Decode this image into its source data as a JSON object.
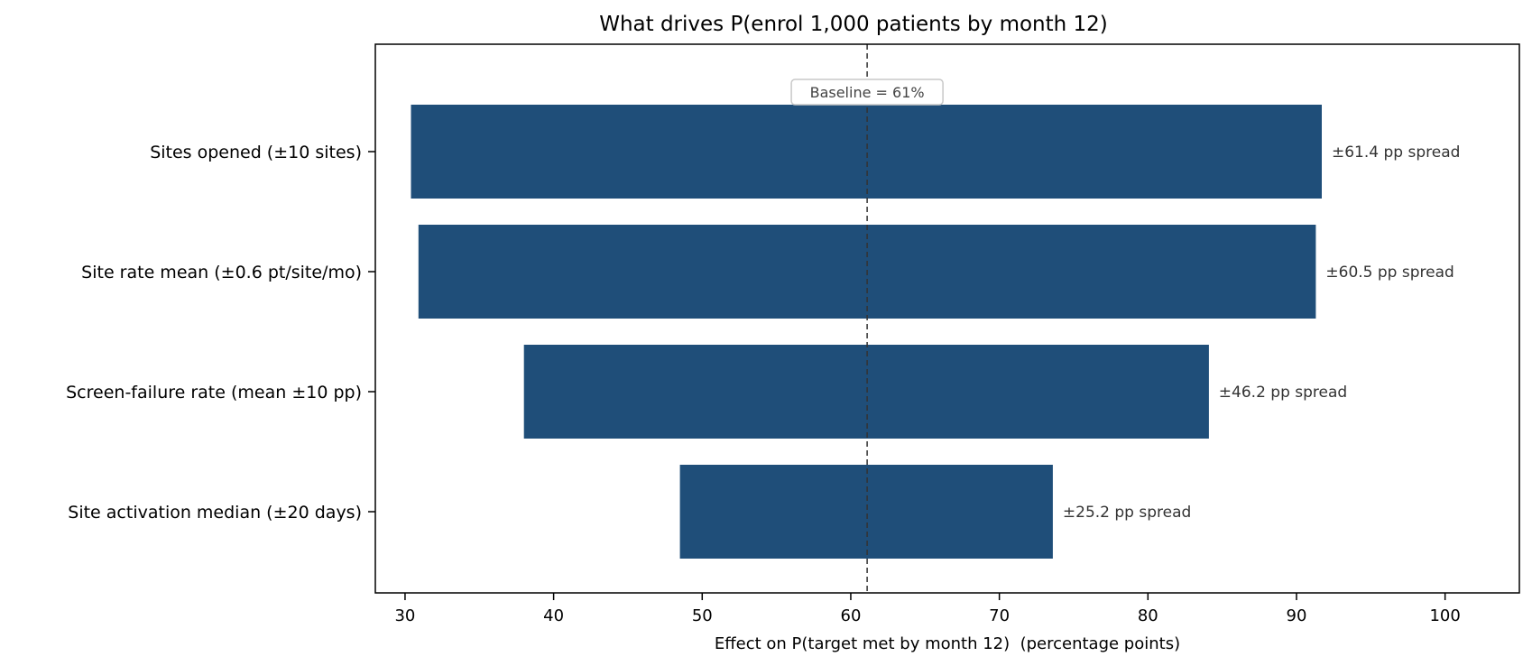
{
  "chart_data": {
    "type": "bar",
    "orientation": "horizontal",
    "chart_style": "tornado",
    "title": "What drives P(enrol 1,000 patients by month 12)",
    "xlabel": "Effect on P(target met by month 12)  (percentage points)",
    "ylabel": "",
    "xlim": [
      28,
      105
    ],
    "xticks": [
      30,
      40,
      50,
      60,
      70,
      80,
      90,
      100
    ],
    "grid": false,
    "baseline": {
      "value": 61.1,
      "label": "Baseline = 61%"
    },
    "categories": [
      "Sites opened (±10 sites)",
      "Site rate mean (±0.6 pt/site/mo)",
      "Screen-failure rate (mean ±10 pp)",
      "Site activation median (±20 days)"
    ],
    "low": [
      30.4,
      30.9,
      38.0,
      48.5
    ],
    "high": [
      91.7,
      91.3,
      84.1,
      73.6
    ],
    "spread_labels": [
      "±61.4 pp spread",
      "±60.5 pp spread",
      "±46.2 pp spread",
      "±25.2 pp spread"
    ],
    "colors": {
      "bar": "#1f4e79",
      "baseline_line": "#333333"
    }
  }
}
